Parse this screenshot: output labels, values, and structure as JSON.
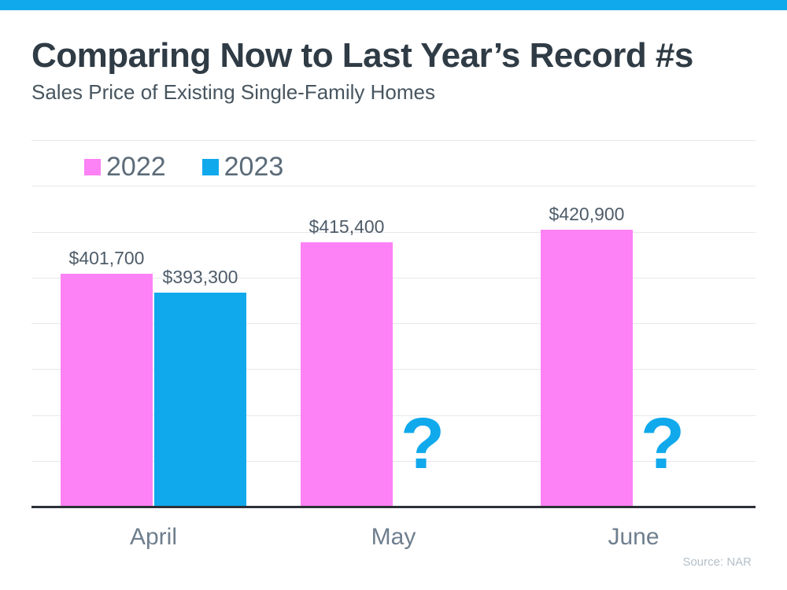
{
  "header": {
    "title": "Comparing Now to Last Year’s Record #s",
    "subtitle": "Sales Price of Existing Single-Family Homes"
  },
  "chart_data": {
    "type": "bar",
    "title": "Comparing Now to Last Year’s Record #s",
    "subtitle": "Sales Price of Existing Single-Family Homes",
    "categories": [
      "April",
      "May",
      "June"
    ],
    "series": [
      {
        "name": "2022",
        "color": "#fc82f5",
        "values": [
          401700,
          415400,
          420900
        ],
        "labels": [
          "$401,700",
          "$415,400",
          "$420,900"
        ]
      },
      {
        "name": "2023",
        "color": "#10a9ec",
        "values": [
          393300,
          null,
          null
        ],
        "labels": [
          "$393,300",
          null,
          null
        ],
        "missing_marker": "?"
      }
    ],
    "ylim": [
      300000,
      460000
    ],
    "grid_step": 20000,
    "grid": true,
    "legend_position": "top-left",
    "xlabel": "",
    "ylabel": ""
  },
  "footer": {
    "source": "Source: NAR"
  },
  "colors": {
    "accent_blue": "#10a9ec",
    "accent_pink": "#fc82f5",
    "title_text": "#2f3b45",
    "subtitle_text": "#47555f",
    "legend_text": "#5b6b79",
    "value_label_text": "#4e5c69",
    "axis_label_text": "#6e7e8e",
    "source_text": "#b3c0ca",
    "gridline": "#e5e7ea",
    "baseline": "#2c3138"
  }
}
